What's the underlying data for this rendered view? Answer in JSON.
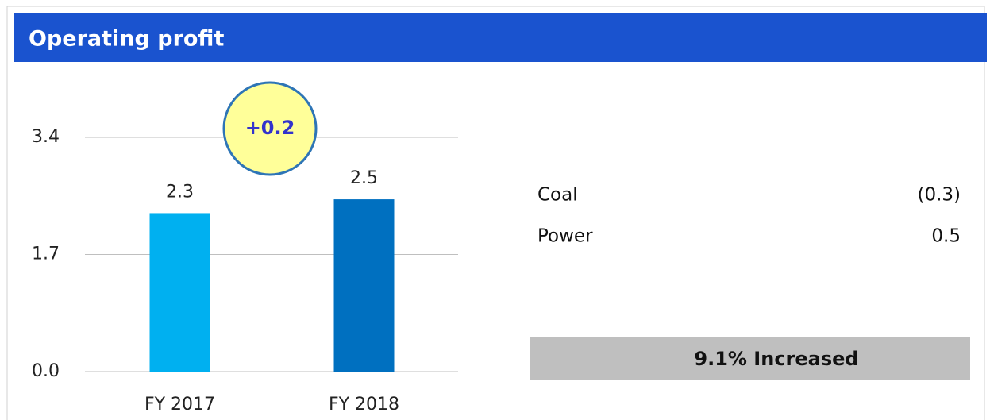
{
  "header": {
    "title": "Operating profit"
  },
  "chart_data": {
    "type": "bar",
    "categories": [
      "FY 2017",
      "FY 2018"
    ],
    "values": [
      2.3,
      2.5
    ],
    "colors": [
      "#00b0f0",
      "#0070c0"
    ],
    "ylim": [
      0,
      3.4
    ],
    "yticks": [
      {
        "value": 0,
        "label": "0.0"
      },
      1.7,
      3.4
    ],
    "grid": true,
    "annotation": "+0.2"
  },
  "breakdown": [
    {
      "label": "Coal",
      "value": "(0.3)"
    },
    {
      "label": "Power",
      "value": "0.5"
    }
  ],
  "summary": "9.1% Increased"
}
